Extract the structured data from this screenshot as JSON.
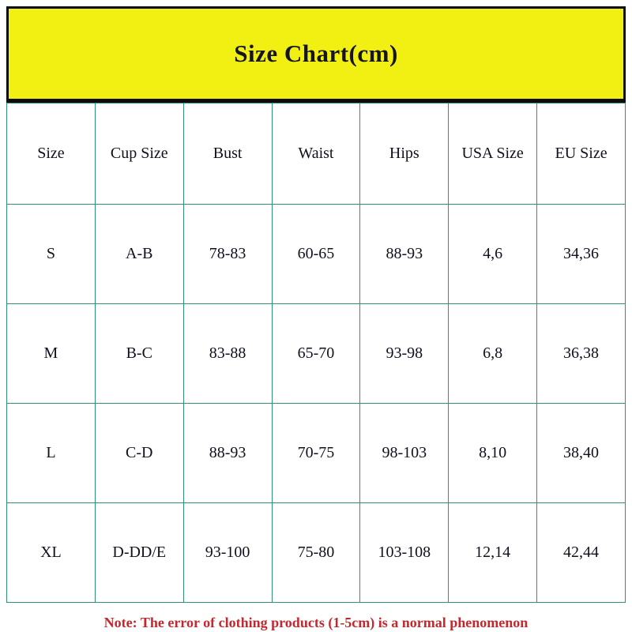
{
  "header": {
    "title": "Size Chart(cm)"
  },
  "table": {
    "columns": [
      "Size",
      "Cup Size",
      "Bust",
      "Waist",
      "Hips",
      "USA Size",
      "EU Size"
    ],
    "rows": [
      [
        "S",
        "A-B",
        "78-83",
        "60-65",
        "88-93",
        "4,6",
        "34,36"
      ],
      [
        "M",
        "B-C",
        "83-88",
        "65-70",
        "93-98",
        "6,8",
        "36,38"
      ],
      [
        "L",
        "C-D",
        "88-93",
        "70-75",
        "98-103",
        "8,10",
        "38,40"
      ],
      [
        "XL",
        "D-DD/E",
        "93-100",
        "75-80",
        "103-108",
        "12,14",
        "42,44"
      ]
    ]
  },
  "note": "Note: The error of clothing products (1-5cm) is a normal phenomenon",
  "colors": {
    "banner_background": "#f2ef12",
    "banner_border": "#0c0c0c",
    "table_border": "#2f9372",
    "text": "#10101f",
    "note_text": "#c2292f"
  },
  "chart_data": {
    "type": "table",
    "title": "Size Chart(cm)",
    "columns": [
      "Size",
      "Cup Size",
      "Bust",
      "Waist",
      "Hips",
      "USA Size",
      "EU Size"
    ],
    "rows": [
      [
        "S",
        "A-B",
        "78-83",
        "60-65",
        "88-93",
        "4,6",
        "34,36"
      ],
      [
        "M",
        "B-C",
        "83-88",
        "65-70",
        "93-98",
        "6,8",
        "36,38"
      ],
      [
        "L",
        "C-D",
        "88-93",
        "70-75",
        "98-103",
        "8,10",
        "38,40"
      ],
      [
        "XL",
        "D-DD/E",
        "93-100",
        "75-80",
        "103-108",
        "12,14",
        "42,44"
      ]
    ],
    "footnote": "Note: The error of clothing products (1-5cm) is a normal phenomenon",
    "units": "cm"
  }
}
